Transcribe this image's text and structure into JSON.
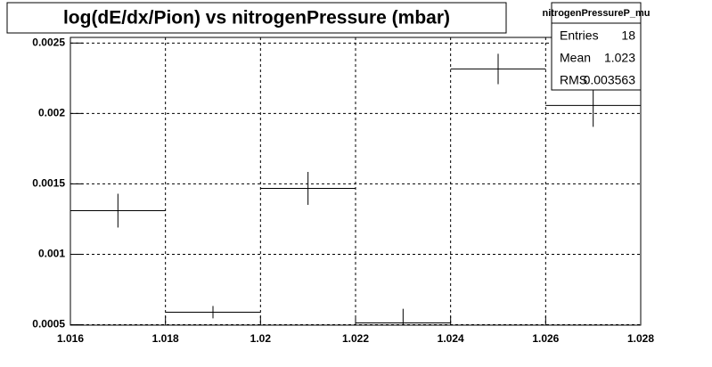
{
  "chart_data": {
    "type": "histogram",
    "title": "log(dE/dx/Pion) vs nitrogenPressure (mbar)",
    "bins": [
      1.016,
      1.018,
      1.02,
      1.022,
      1.024,
      1.026,
      1.028
    ],
    "values": [
      0.00131,
      0.000589,
      0.001468,
      0.000513,
      0.002316,
      0.002057
    ],
    "errors": [
      0.00012,
      4.4e-05,
      0.000117,
      0.0001,
      0.000108,
      0.000152
    ],
    "color": "#000000",
    "xlim": [
      1.016,
      1.028
    ],
    "xticks": [
      1.016,
      1.018,
      1.02,
      1.022,
      1.024,
      1.026,
      1.028
    ],
    "ylim": [
      0.000497,
      0.00254
    ],
    "yticks": [
      0.0005,
      0.001,
      0.0015,
      0.002,
      0.0025
    ],
    "grid": true,
    "stats": {
      "title": "nitrogenPressureP_mu",
      "rows": [
        {
          "label": "Entries",
          "value": 18
        },
        {
          "label": "Mean",
          "value": 1.023
        },
        {
          "label": "RMS",
          "value": 0.003563
        }
      ]
    }
  }
}
